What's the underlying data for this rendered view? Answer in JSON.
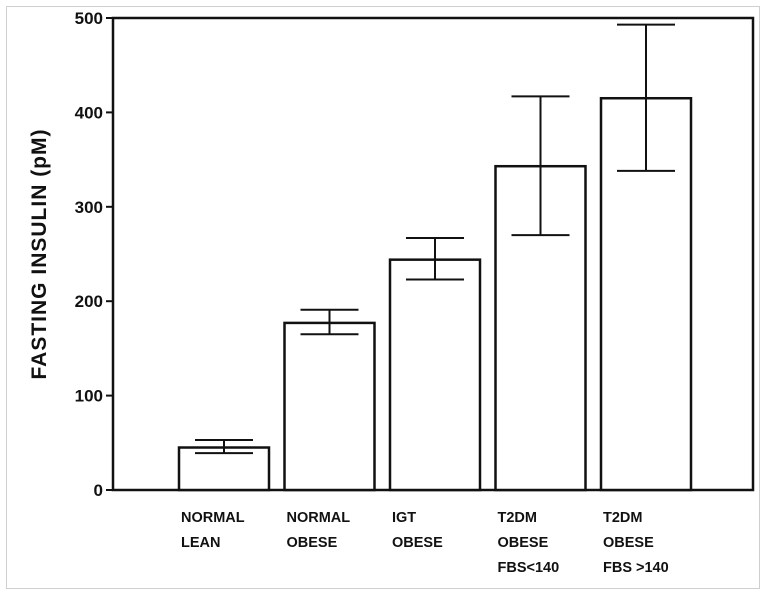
{
  "chart_data": {
    "type": "bar",
    "categories": [
      [
        "NORMAL",
        "LEAN"
      ],
      [
        "NORMAL",
        "OBESE"
      ],
      [
        "IGT",
        "OBESE"
      ],
      [
        "T2DM",
        "OBESE",
        "FBS<140"
      ],
      [
        "T2DM",
        "OBESE",
        "FBS >140"
      ]
    ],
    "values": [
      45,
      177,
      244,
      343,
      415
    ],
    "error_low": [
      39,
      165,
      223,
      270,
      338
    ],
    "error_high": [
      53,
      191,
      267,
      417,
      493
    ],
    "title": "",
    "xlabel": "",
    "ylabel": "FASTING INSULIN (pM)",
    "ylim": [
      0,
      500
    ],
    "yticks": [
      0,
      100,
      200,
      300,
      400,
      500
    ],
    "grid": false,
    "bar_fill": "#ffffff",
    "bar_stroke": "#111111"
  }
}
